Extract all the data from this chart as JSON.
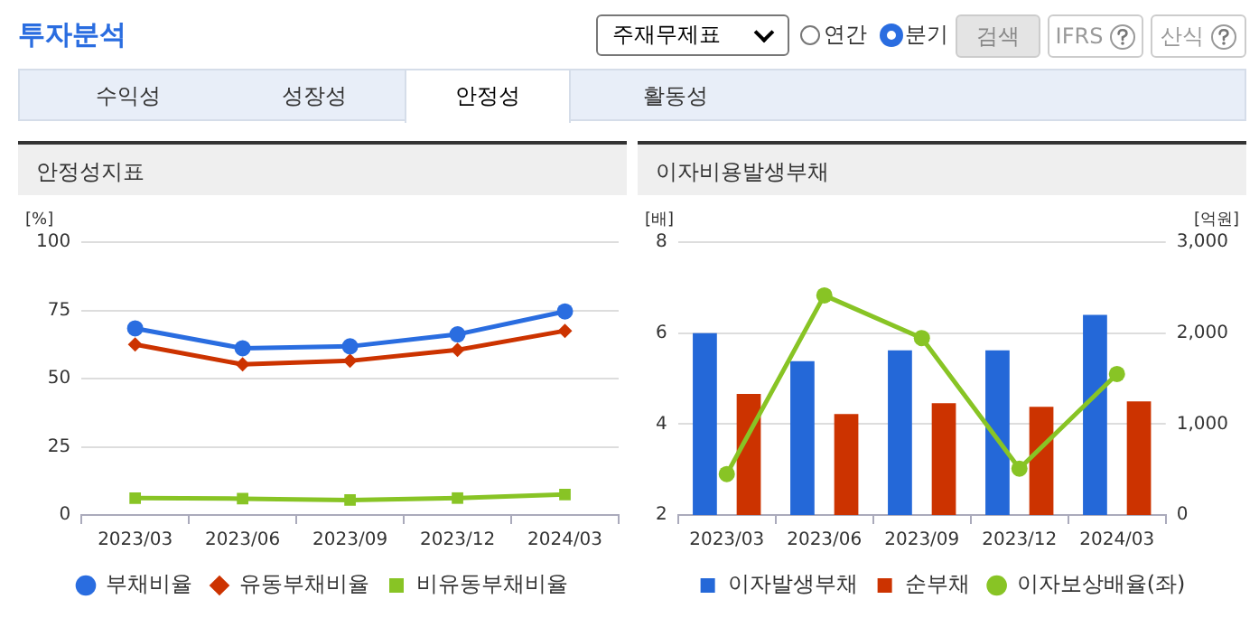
{
  "chart_data": [
    {
      "type": "other",
      "title": "투자분석",
      "annotations": [
        "주재무제표",
        "연간",
        "분기",
        "검색",
        "IFRS",
        "산식",
        "수익성",
        "성장성",
        "안정성",
        "활동성"
      ]
    },
    {
      "type": "line",
      "title": "안정성지표",
      "ylabel": "[%]",
      "categories": [
        "2023/03",
        "2023/06",
        "2023/09",
        "2023/12",
        "2024/03"
      ],
      "ylim": [
        0,
        100
      ],
      "yticks": [
        0,
        25,
        50,
        75,
        100
      ],
      "grid": "y",
      "legend": "bottom",
      "series": [
        {
          "name": "부채비율",
          "color": "#2a6de0",
          "marker": "circle",
          "values": [
            68.4,
            61.1,
            61.8,
            66.2,
            74.6
          ]
        },
        {
          "name": "유동부채비율",
          "color": "#cc3300",
          "marker": "diamond",
          "values": [
            62.5,
            55.2,
            56.5,
            60.5,
            67.5
          ]
        },
        {
          "name": "비유동부채비율",
          "color": "#88c425",
          "marker": "square",
          "values": [
            6.2,
            6.0,
            5.5,
            6.2,
            7.5
          ]
        }
      ]
    },
    {
      "type": "bar",
      "title": "이자비용발생부채",
      "ylabel": "[배]",
      "y2label": "[억원]",
      "categories": [
        "2023/03",
        "2023/06",
        "2023/09",
        "2023/12",
        "2024/03"
      ],
      "ylim": [
        2,
        8
      ],
      "yticks": [
        2,
        4,
        6,
        8
      ],
      "y2lim": [
        0,
        3000
      ],
      "y2ticks": [
        0,
        {
          "value": 1000,
          "label": "1,000"
        },
        {
          "value": 2000,
          "label": "2,000"
        },
        {
          "value": 3000,
          "label": "3,000"
        }
      ],
      "grid": "y",
      "legend": "bottom",
      "series": [
        {
          "name": "이자발생부채",
          "color": "#2468d8",
          "axis": "y2",
          "values": [
            2000,
            1690,
            1810,
            1810,
            2200
          ]
        },
        {
          "name": "순부채",
          "color": "#cc3300",
          "axis": "y2",
          "values": [
            1330,
            1110,
            1230,
            1190,
            1250
          ]
        },
        {
          "name": "이자보상배율(좌)",
          "type": "line",
          "color": "#88c425",
          "axis": "y",
          "marker": "circle",
          "values": [
            2.9,
            6.83,
            5.89,
            3.02,
            5.1
          ]
        }
      ]
    }
  ]
}
